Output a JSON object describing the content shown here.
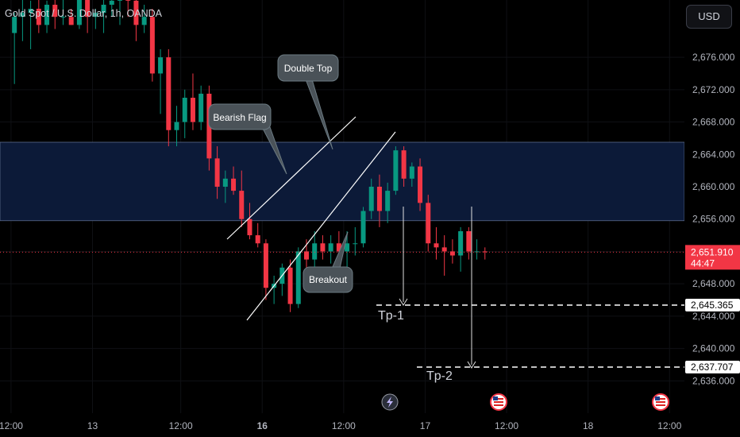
{
  "header": {
    "title": "Gold Spot / U.S. Dollar, 1h, OANDA",
    "currency": "USD"
  },
  "colors": {
    "up": "#089981",
    "down": "#f23645",
    "zone": "#0c1a38",
    "price_line": "#f23645",
    "text": "#b2b5be"
  },
  "chart_data": {
    "type": "candlestick",
    "timeframe": "1h",
    "y_ticks": [
      "2,636.000",
      "2,640.000",
      "2,644.000",
      "2,648.000",
      "2,652.000",
      "2,656.000",
      "2,660.000",
      "2,664.000",
      "2,668.000",
      "2,672.000",
      "2,676.000"
    ],
    "x_ticks": [
      {
        "label": "12:00",
        "slot": -22
      },
      {
        "label": "13",
        "slot": -10
      },
      {
        "label": "12:00",
        "slot": 3
      },
      {
        "label": "16",
        "slot": 15
      },
      {
        "label": "12:00",
        "slot": 27
      },
      {
        "label": "17",
        "slot": 39
      },
      {
        "label": "12:00",
        "slot": 51
      },
      {
        "label": "18",
        "slot": 63
      },
      {
        "label": "12:00",
        "slot": 75
      }
    ],
    "candles": [
      [
        2679.0,
        2681.5,
        2672.7,
        2681.0
      ],
      [
        2681.0,
        2684.0,
        2678.0,
        2681.5
      ],
      [
        2681.5,
        2683.0,
        2677.0,
        2682.0
      ],
      [
        2682.0,
        2684.0,
        2679.0,
        2680.0
      ],
      [
        2680.0,
        2683.0,
        2679.0,
        2682.5
      ],
      [
        2682.5,
        2683.5,
        2679.5,
        2681.0
      ],
      [
        2681.0,
        2683.5,
        2680.0,
        2681.0
      ],
      [
        2681.0,
        2682.0,
        2680.0,
        2680.0
      ],
      [
        2680.0,
        2685.0,
        2679.5,
        2684.0
      ],
      [
        2684.0,
        2685.0,
        2679.0,
        2681.0
      ],
      [
        2681.0,
        2682.0,
        2679.5,
        2681.5
      ],
      [
        2681.5,
        2683.5,
        2679.0,
        2682.5
      ],
      [
        2682.5,
        2684.0,
        2681.0,
        2683.0
      ],
      [
        2683.0,
        2684.5,
        2680.0,
        2684.0
      ],
      [
        2684.0,
        2686.0,
        2681.0,
        2683.0
      ],
      [
        2683.0,
        2684.0,
        2678.0,
        2680.0
      ],
      [
        2680.0,
        2682.5,
        2679.0,
        2681.0
      ],
      [
        2681.0,
        2682.0,
        2673.0,
        2674.0
      ],
      [
        2674.0,
        2677.0,
        2669.0,
        2676.0
      ],
      [
        2676.0,
        2677.0,
        2665.0,
        2667.0
      ],
      [
        2667.0,
        2670.0,
        2665.0,
        2668.0
      ],
      [
        2668.0,
        2672.0,
        2666.0,
        2671.0
      ],
      [
        2671.0,
        2674.0,
        2667.0,
        2668.0
      ],
      [
        2668.0,
        2672.5,
        2667.0,
        2671.5
      ],
      [
        2671.5,
        2672.5,
        2662.0,
        2663.5
      ],
      [
        2663.5,
        2665.0,
        2658.5,
        2660.0
      ],
      [
        2660.0,
        2662.0,
        2658.0,
        2661.0
      ],
      [
        2661.0,
        2662.5,
        2659.0,
        2659.5
      ],
      [
        2659.5,
        2662.0,
        2655.0,
        2656.0
      ],
      [
        2656.0,
        2658.0,
        2653.5,
        2654.0
      ],
      [
        2654.0,
        2655.5,
        2652.5,
        2653.0
      ],
      [
        2653.0,
        2653.5,
        2646.0,
        2647.5
      ],
      [
        2647.5,
        2649.0,
        2645.5,
        2648.0
      ],
      [
        2648.0,
        2650.5,
        2646.5,
        2650.0
      ],
      [
        2650.0,
        2651.0,
        2644.5,
        2645.5
      ],
      [
        2645.5,
        2652.5,
        2645.0,
        2652.0
      ],
      [
        2652.0,
        2653.5,
        2649.0,
        2651.0
      ],
      [
        2651.0,
        2654.5,
        2649.5,
        2653.0
      ],
      [
        2653.0,
        2654.0,
        2651.0,
        2652.0
      ],
      [
        2652.0,
        2654.0,
        2650.5,
        2653.0
      ],
      [
        2653.0,
        2654.5,
        2651.0,
        2652.0
      ],
      [
        2652.0,
        2654.5,
        2650.0,
        2653.0
      ],
      [
        2653.0,
        2655.0,
        2651.5,
        2653.0
      ],
      [
        2653.0,
        2657.5,
        2652.5,
        2657.0
      ],
      [
        2657.0,
        2661.0,
        2656.0,
        2660.0
      ],
      [
        2660.0,
        2661.5,
        2655.0,
        2657.0
      ],
      [
        2657.0,
        2660.5,
        2655.5,
        2659.5
      ],
      [
        2659.5,
        2665.0,
        2659.0,
        2664.5
      ],
      [
        2664.5,
        2665.0,
        2660.0,
        2661.0
      ],
      [
        2661.0,
        2663.0,
        2660.0,
        2662.5
      ],
      [
        2662.5,
        2663.5,
        2657.0,
        2658.0
      ],
      [
        2658.0,
        2659.0,
        2652.0,
        2653.0
      ],
      [
        2653.0,
        2655.0,
        2651.0,
        2652.5
      ],
      [
        2652.5,
        2654.0,
        2649.0,
        2652.0
      ],
      [
        2652.0,
        2653.5,
        2650.5,
        2651.5
      ],
      [
        2651.5,
        2655.0,
        2649.5,
        2654.5
      ],
      [
        2654.5,
        2655.0,
        2651.0,
        2652.0
      ],
      [
        2652.0,
        2653.5,
        2651.0,
        2652.0
      ],
      [
        2652.0,
        2652.5,
        2651.0,
        2651.9
      ]
    ],
    "price_line": {
      "value": 2651.91,
      "label": "2,651.910",
      "countdown": "44:47"
    },
    "resistance_zone": {
      "from": 2655.8,
      "to": 2665.5
    },
    "targets": [
      {
        "name": "Tp-1",
        "value": 2645.365,
        "label": "2,645.365"
      },
      {
        "name": "Tp-2",
        "value": 2637.707,
        "label": "2,637.707"
      }
    ],
    "annotations": [
      "Double Top",
      "Bearish Flag",
      "Breakout"
    ]
  }
}
